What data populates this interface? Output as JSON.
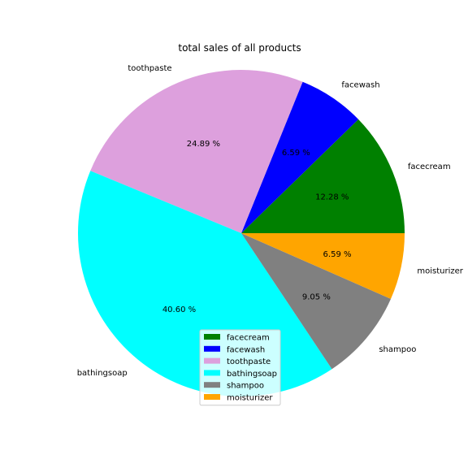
{
  "chart_data": {
    "type": "pie",
    "title": "total sales of all products",
    "start_angle_deg": 0,
    "direction": "counterclockwise",
    "legend_position": "lower-center",
    "slices": [
      {
        "label": "facecream",
        "value": 12.28,
        "pct_text": "12.28 %",
        "color": "#008000"
      },
      {
        "label": "facewash",
        "value": 6.59,
        "pct_text": "6.59 %",
        "color": "#0000ff"
      },
      {
        "label": "toothpaste",
        "value": 24.89,
        "pct_text": "24.89 %",
        "color": "#dda0dd"
      },
      {
        "label": "bathingsoap",
        "value": 40.6,
        "pct_text": "40.60 %",
        "color": "#00ffff"
      },
      {
        "label": "shampoo",
        "value": 9.05,
        "pct_text": "9.05 %",
        "color": "#808080"
      },
      {
        "label": "moisturizer",
        "value": 6.59,
        "pct_text": "6.59 %",
        "color": "#ffa500"
      }
    ]
  }
}
